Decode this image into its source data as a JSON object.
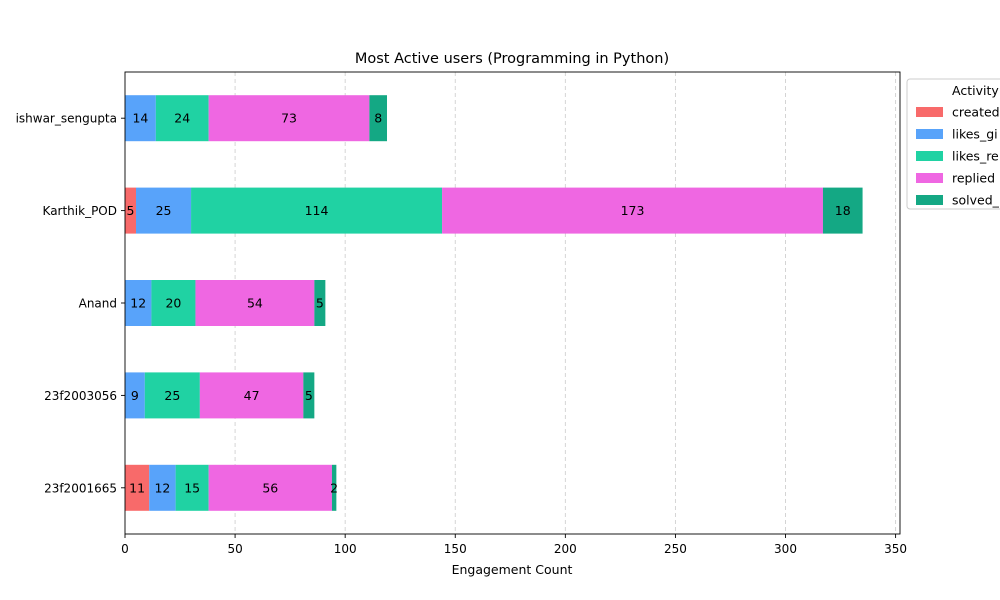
{
  "chart_data": {
    "type": "bar",
    "orientation": "horizontal",
    "stacked": true,
    "title": "Most Active users (Programming in Python)",
    "xlabel": "Engagement Count",
    "ylabel": "",
    "xlim": [
      0,
      352
    ],
    "xticks": [
      "0",
      "50",
      "100",
      "150",
      "200",
      "250",
      "300",
      "350"
    ],
    "grid": "x, dashed",
    "legend_position": "right-top",
    "legend_title": "Activity",
    "categories": [
      "ishwar_sengupta",
      "Karthik_POD",
      "Anand",
      "23f2003056",
      "23f2001665"
    ],
    "series": [
      {
        "name": "created",
        "color": "#f86a6a",
        "values": [
          0,
          5,
          0,
          0,
          11
        ]
      },
      {
        "name": "likes_gi",
        "color": "#58a3fa",
        "values": [
          14,
          25,
          12,
          9,
          12
        ]
      },
      {
        "name": "likes_re",
        "color": "#20d2a3",
        "values": [
          24,
          114,
          20,
          25,
          15
        ]
      },
      {
        "name": "replied",
        "color": "#ef67e2",
        "values": [
          73,
          173,
          54,
          47,
          56
        ]
      },
      {
        "name": "solved_",
        "color": "#14a884",
        "values": [
          8,
          18,
          5,
          5,
          2
        ]
      }
    ]
  }
}
